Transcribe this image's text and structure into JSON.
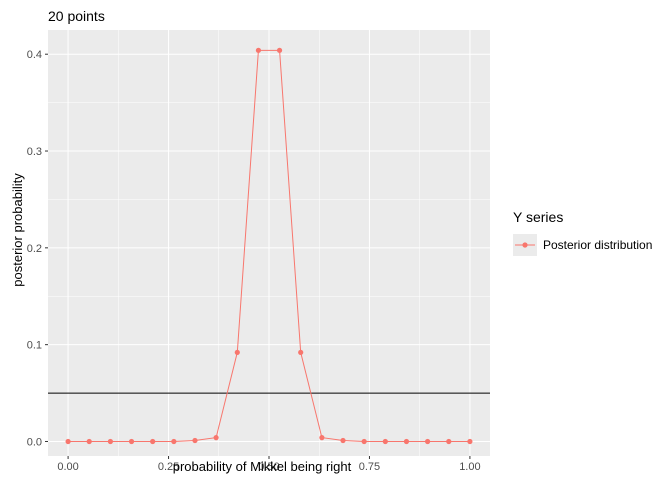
{
  "chart_data": {
    "type": "line",
    "title": "20 points",
    "xlabel": "probability of Mikkel being right",
    "ylabel": "posterior probability",
    "xlim": [
      -0.05,
      1.05
    ],
    "ylim": [
      -0.015,
      0.425
    ],
    "x_ticks": [
      0.0,
      0.25,
      0.5,
      0.75,
      1.0
    ],
    "x_tick_labels": [
      "0.00",
      "0.25",
      "0.50",
      "0.75",
      "1.00"
    ],
    "y_ticks": [
      0.0,
      0.1,
      0.2,
      0.3,
      0.4
    ],
    "y_tick_labels": [
      "0.0",
      "0.1",
      "0.2",
      "0.3",
      "0.4"
    ],
    "grid": true,
    "legend_position": "right",
    "legend_title": "Y series",
    "series": [
      {
        "name": "Posterior distribution",
        "color": "#f8766d",
        "x": [
          0.0,
          0.0526,
          0.1053,
          0.1579,
          0.2105,
          0.2632,
          0.3158,
          0.3684,
          0.4211,
          0.4737,
          0.5263,
          0.5789,
          0.6316,
          0.6842,
          0.7368,
          0.7895,
          0.8421,
          0.8947,
          0.9474,
          1.0
        ],
        "values": [
          0.0,
          0.0,
          0.0,
          0.0,
          0.0,
          0.0,
          0.001,
          0.004,
          0.092,
          0.404,
          0.404,
          0.092,
          0.004,
          0.001,
          0.0,
          0.0,
          0.0,
          0.0,
          0.0,
          0.0
        ]
      }
    ],
    "hline": {
      "y": 0.05,
      "color": "#000000"
    }
  }
}
